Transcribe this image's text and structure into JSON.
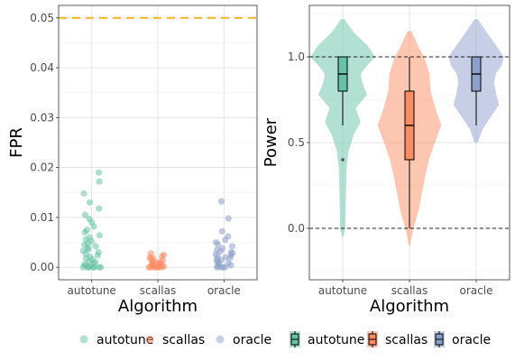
{
  "chart_data": [
    {
      "type": "scatter",
      "xlabel": "Algorithm",
      "ylabel": "FPR",
      "categories": [
        "autotune",
        "scallas",
        "oracle"
      ],
      "ylim": [
        -0.0025,
        0.0525
      ],
      "yticks": [
        "0.00",
        "0.01",
        "0.02",
        "0.03",
        "0.04",
        "0.05"
      ],
      "reference_line": {
        "y": 0.05,
        "style": "dashed",
        "color": "#f5b82e"
      },
      "grid": true,
      "series": [
        {
          "category": "autotune",
          "color": "#66c2a5",
          "values": [
            0.019,
            0.0172,
            0.0148,
            0.013,
            0.0118,
            0.0105,
            0.0097,
            0.009,
            0.0082,
            0.0075,
            0.007,
            0.0064,
            0.006,
            0.0056,
            0.0052,
            0.0048,
            0.0045,
            0.0042,
            0.0039,
            0.0036,
            0.0033,
            0.003,
            0.0027,
            0.0024,
            0.0021,
            0.0018,
            0.0015,
            0.0012,
            0.001,
            0.0008,
            0.0006,
            0.0004,
            0.0002,
            0.0,
            0.0,
            0.0,
            0.0,
            0.0,
            0.0,
            0.0
          ]
        },
        {
          "category": "scallas",
          "color": "#fc8d62",
          "values": [
            0.0028,
            0.0025,
            0.0022,
            0.002,
            0.0018,
            0.0016,
            0.0014,
            0.0012,
            0.001,
            0.0009,
            0.0008,
            0.0007,
            0.0006,
            0.0005,
            0.0004,
            0.0003,
            0.0002,
            0.0001,
            0.0,
            0.0,
            0.0,
            0.0,
            0.0,
            0.0
          ]
        },
        {
          "category": "oracle",
          "color": "#8da0cb",
          "values": [
            0.0132,
            0.0098,
            0.0072,
            0.0062,
            0.0055,
            0.005,
            0.0046,
            0.0042,
            0.0038,
            0.0035,
            0.0032,
            0.003,
            0.0028,
            0.0026,
            0.0024,
            0.0022,
            0.002,
            0.0018,
            0.0016,
            0.0014,
            0.0012,
            0.001,
            0.0008,
            0.0006,
            0.0004,
            0.0002,
            0.0,
            0.0,
            0.0,
            0.0
          ]
        }
      ]
    },
    {
      "type": "violin",
      "xlabel": "Algorithm",
      "ylabel": "Power",
      "categories": [
        "autotune",
        "scallas",
        "oracle"
      ],
      "ylim": [
        -0.3,
        1.3
      ],
      "yticks": [
        "0.0",
        "0.5",
        "1.0"
      ],
      "reference_lines": [
        {
          "y": 0.0,
          "style": "dashed"
        },
        {
          "y": 1.0,
          "style": "dashed"
        }
      ],
      "grid": true,
      "series": [
        {
          "name": "autotune",
          "color": "#66c2a5",
          "box": {
            "min": 0.6,
            "q1": 0.8,
            "median": 0.9,
            "q3": 1.0,
            "max": 1.0
          },
          "outliers": [
            0.4
          ],
          "density": [
            [
              -0.05,
              0.02
            ],
            [
              0.0,
              0.08
            ],
            [
              0.2,
              0.1
            ],
            [
              0.35,
              0.12
            ],
            [
              0.45,
              0.18
            ],
            [
              0.55,
              0.35
            ],
            [
              0.62,
              0.55
            ],
            [
              0.7,
              0.4
            ],
            [
              0.78,
              0.75
            ],
            [
              0.85,
              0.6
            ],
            [
              0.9,
              0.55
            ],
            [
              0.95,
              0.75
            ],
            [
              1.0,
              1.0
            ],
            [
              1.07,
              0.75
            ],
            [
              1.14,
              0.35
            ],
            [
              1.22,
              0.05
            ]
          ]
        },
        {
          "name": "scallas",
          "color": "#fc8d62",
          "box": {
            "min": 0.0,
            "q1": 0.4,
            "median": 0.6,
            "q3": 0.8,
            "max": 1.0
          },
          "outliers": [],
          "density": [
            [
              -0.1,
              0.02
            ],
            [
              0.0,
              0.12
            ],
            [
              0.1,
              0.28
            ],
            [
              0.2,
              0.38
            ],
            [
              0.3,
              0.48
            ],
            [
              0.4,
              0.6
            ],
            [
              0.5,
              0.78
            ],
            [
              0.6,
              0.98
            ],
            [
              0.7,
              0.8
            ],
            [
              0.8,
              0.65
            ],
            [
              0.9,
              0.62
            ],
            [
              1.0,
              0.45
            ],
            [
              1.05,
              0.3
            ],
            [
              1.15,
              0.06
            ]
          ]
        },
        {
          "name": "oracle",
          "color": "#8da0cb",
          "box": {
            "min": 0.6,
            "q1": 0.8,
            "median": 0.9,
            "q3": 1.0,
            "max": 1.0
          },
          "outliers": [],
          "density": [
            [
              0.5,
              0.05
            ],
            [
              0.58,
              0.2
            ],
            [
              0.65,
              0.45
            ],
            [
              0.72,
              0.7
            ],
            [
              0.78,
              0.62
            ],
            [
              0.85,
              0.55
            ],
            [
              0.9,
              0.6
            ],
            [
              0.95,
              0.78
            ],
            [
              1.0,
              0.85
            ],
            [
              1.07,
              0.6
            ],
            [
              1.15,
              0.3
            ],
            [
              1.22,
              0.05
            ]
          ]
        }
      ]
    }
  ],
  "legend": {
    "placement": "bottom",
    "point_items": [
      {
        "label": "autotune",
        "color": "#66c2a5"
      },
      {
        "label": "scallas",
        "color": "#fc8d62"
      },
      {
        "label": "oracle",
        "color": "#8da0cb"
      }
    ],
    "box_items": [
      {
        "label": "autotune",
        "color": "#66c2a5"
      },
      {
        "label": "scallas",
        "color": "#fc8d62"
      },
      {
        "label": "oracle",
        "color": "#8da0cb"
      }
    ]
  }
}
